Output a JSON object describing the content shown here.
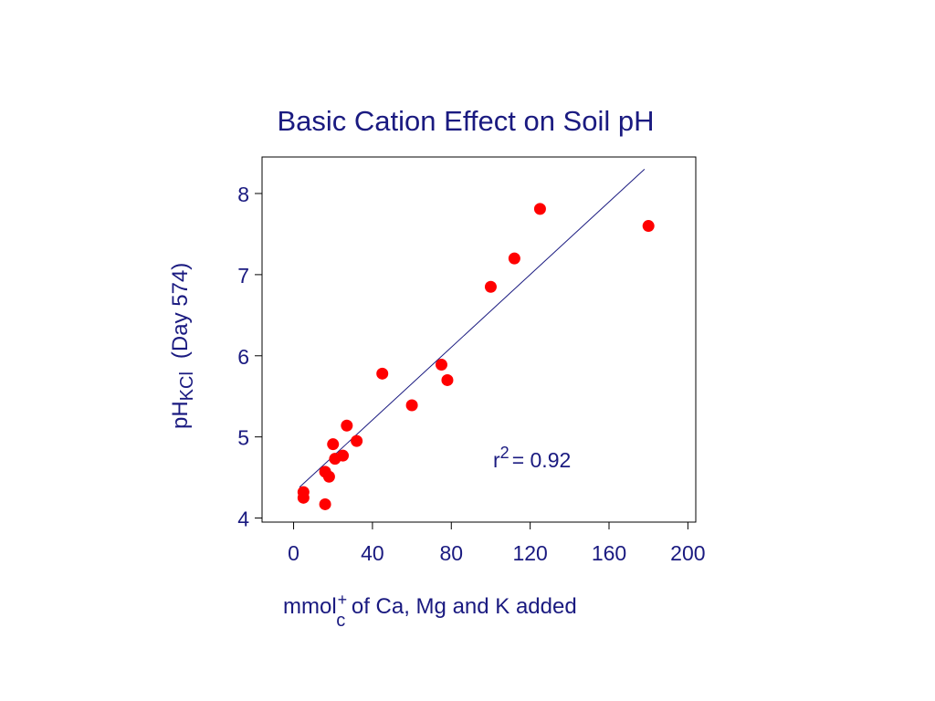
{
  "chart_data": {
    "type": "scatter",
    "title": "Basic Cation Effect on Soil pH",
    "xlabel": {
      "main": "mmol",
      "superscript": "+",
      "subscript": "c",
      "rest": " of Ca, Mg and K added"
    },
    "ylabel": {
      "main": "pH",
      "subscript": "KCl",
      "rest": "(Day 574)"
    },
    "xlim": [
      -16,
      204
    ],
    "ylim": [
      3.95,
      8.45
    ],
    "x_ticks": [
      0,
      40,
      80,
      120,
      160,
      200
    ],
    "y_ticks": [
      4,
      5,
      6,
      7,
      8
    ],
    "points": [
      {
        "x": 5,
        "y": 4.32
      },
      {
        "x": 5,
        "y": 4.25
      },
      {
        "x": 16,
        "y": 4.17
      },
      {
        "x": 16,
        "y": 4.57
      },
      {
        "x": 18,
        "y": 4.51
      },
      {
        "x": 20,
        "y": 4.91
      },
      {
        "x": 21,
        "y": 4.73
      },
      {
        "x": 25,
        "y": 4.77
      },
      {
        "x": 27,
        "y": 5.14
      },
      {
        "x": 32,
        "y": 4.95
      },
      {
        "x": 45,
        "y": 5.78
      },
      {
        "x": 60,
        "y": 5.39
      },
      {
        "x": 75,
        "y": 5.89
      },
      {
        "x": 78,
        "y": 5.7
      },
      {
        "x": 100,
        "y": 6.85
      },
      {
        "x": 112,
        "y": 7.2
      },
      {
        "x": 125,
        "y": 7.81
      },
      {
        "x": 180,
        "y": 7.6
      }
    ],
    "fit_line": {
      "x": [
        3,
        178
      ],
      "y": [
        4.38,
        8.3
      ]
    },
    "annotation": {
      "base": "r",
      "superscript": "2",
      "rest": "= 0.92"
    },
    "grid": false,
    "legend": "none",
    "colors": {
      "points": "#ff0000",
      "text": "#1a1a80",
      "line": "#1a1a80",
      "axes": "#000000"
    }
  }
}
